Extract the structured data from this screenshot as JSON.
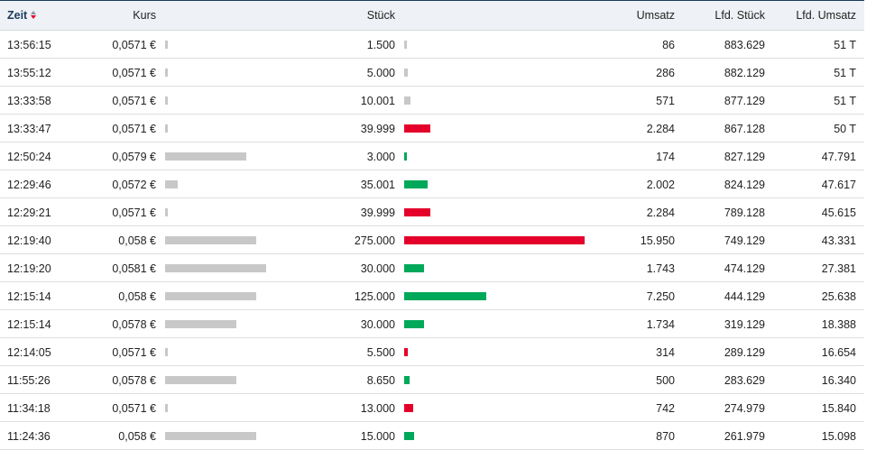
{
  "header": {
    "zeit": "Zeit",
    "kurs": "Kurs",
    "stueck": "Stück",
    "umsatz": "Umsatz",
    "lfd_stueck": "Lfd. Stück",
    "lfd_umsatz": "Lfd. Umsatz",
    "sort_icon": "sort-descending-icon"
  },
  "colors": {
    "sell": "#e4002b",
    "buy": "#00a85a",
    "neutral": "#c8c8c8",
    "header_text": "#1c3a5e"
  },
  "rows": [
    {
      "zeit": "13:56:15",
      "kurs": "0,0571 €",
      "stueck": "1.500",
      "umsatz": "86",
      "lfd_stueck": "883.629",
      "lfd_umsatz": "51 T",
      "kurs_val": 0.0571,
      "stueck_val": 1500,
      "dir": "neutral"
    },
    {
      "zeit": "13:55:12",
      "kurs": "0,0571 €",
      "stueck": "5.000",
      "umsatz": "286",
      "lfd_stueck": "882.129",
      "lfd_umsatz": "51 T",
      "kurs_val": 0.0571,
      "stueck_val": 5000,
      "dir": "neutral"
    },
    {
      "zeit": "13:33:58",
      "kurs": "0,0571 €",
      "stueck": "10.001",
      "umsatz": "571",
      "lfd_stueck": "877.129",
      "lfd_umsatz": "51 T",
      "kurs_val": 0.0571,
      "stueck_val": 10001,
      "dir": "neutral"
    },
    {
      "zeit": "13:33:47",
      "kurs": "0,0571 €",
      "stueck": "39.999",
      "umsatz": "2.284",
      "lfd_stueck": "867.128",
      "lfd_umsatz": "50 T",
      "kurs_val": 0.0571,
      "stueck_val": 39999,
      "dir": "sell"
    },
    {
      "zeit": "12:50:24",
      "kurs": "0,0579 €",
      "stueck": "3.000",
      "umsatz": "174",
      "lfd_stueck": "827.129",
      "lfd_umsatz": "47.791",
      "kurs_val": 0.0579,
      "stueck_val": 3000,
      "dir": "buy"
    },
    {
      "zeit": "12:29:46",
      "kurs": "0,0572 €",
      "stueck": "35.001",
      "umsatz": "2.002",
      "lfd_stueck": "824.129",
      "lfd_umsatz": "47.617",
      "kurs_val": 0.0572,
      "stueck_val": 35001,
      "dir": "buy"
    },
    {
      "zeit": "12:29:21",
      "kurs": "0,0571 €",
      "stueck": "39.999",
      "umsatz": "2.284",
      "lfd_stueck": "789.128",
      "lfd_umsatz": "45.615",
      "kurs_val": 0.0571,
      "stueck_val": 39999,
      "dir": "sell"
    },
    {
      "zeit": "12:19:40",
      "kurs": "0,058 €",
      "stueck": "275.000",
      "umsatz": "15.950",
      "lfd_stueck": "749.129",
      "lfd_umsatz": "43.331",
      "kurs_val": 0.058,
      "stueck_val": 275000,
      "dir": "sell"
    },
    {
      "zeit": "12:19:20",
      "kurs": "0,0581 €",
      "stueck": "30.000",
      "umsatz": "1.743",
      "lfd_stueck": "474.129",
      "lfd_umsatz": "27.381",
      "kurs_val": 0.0581,
      "stueck_val": 30000,
      "dir": "buy"
    },
    {
      "zeit": "12:15:14",
      "kurs": "0,058 €",
      "stueck": "125.000",
      "umsatz": "7.250",
      "lfd_stueck": "444.129",
      "lfd_umsatz": "25.638",
      "kurs_val": 0.058,
      "stueck_val": 125000,
      "dir": "buy"
    },
    {
      "zeit": "12:15:14",
      "kurs": "0,0578 €",
      "stueck": "30.000",
      "umsatz": "1.734",
      "lfd_stueck": "319.129",
      "lfd_umsatz": "18.388",
      "kurs_val": 0.0578,
      "stueck_val": 30000,
      "dir": "buy"
    },
    {
      "zeit": "12:14:05",
      "kurs": "0,0571 €",
      "stueck": "5.500",
      "umsatz": "314",
      "lfd_stueck": "289.129",
      "lfd_umsatz": "16.654",
      "kurs_val": 0.0571,
      "stueck_val": 5500,
      "dir": "sell"
    },
    {
      "zeit": "11:55:26",
      "kurs": "0,0578 €",
      "stueck": "8.650",
      "umsatz": "500",
      "lfd_stueck": "283.629",
      "lfd_umsatz": "16.340",
      "kurs_val": 0.0578,
      "stueck_val": 8650,
      "dir": "buy"
    },
    {
      "zeit": "11:34:18",
      "kurs": "0,0571 €",
      "stueck": "13.000",
      "umsatz": "742",
      "lfd_stueck": "274.979",
      "lfd_umsatz": "15.840",
      "kurs_val": 0.0571,
      "stueck_val": 13000,
      "dir": "sell"
    },
    {
      "zeit": "11:24:36",
      "kurs": "0,058 €",
      "stueck": "15.000",
      "umsatz": "870",
      "lfd_stueck": "261.979",
      "lfd_umsatz": "15.098",
      "kurs_val": 0.058,
      "stueck_val": 15000,
      "dir": "buy"
    }
  ]
}
